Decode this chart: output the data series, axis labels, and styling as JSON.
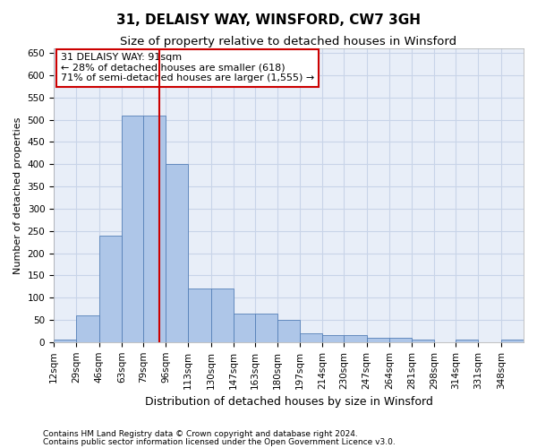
{
  "title1": "31, DELAISY WAY, WINSFORD, CW7 3GH",
  "title2": "Size of property relative to detached houses in Winsford",
  "xlabel": "Distribution of detached houses by size in Winsford",
  "ylabel": "Number of detached properties",
  "footnote1": "Contains HM Land Registry data © Crown copyright and database right 2024.",
  "footnote2": "Contains public sector information licensed under the Open Government Licence v3.0.",
  "annotation_line1": "31 DELAISY WAY: 91sqm",
  "annotation_line2": "← 28% of detached houses are smaller (618)",
  "annotation_line3": "71% of semi-detached houses are larger (1,555) →",
  "bar_edges": [
    12,
    29,
    46,
    63,
    79,
    96,
    113,
    130,
    147,
    163,
    180,
    197,
    214,
    230,
    247,
    264,
    281,
    298,
    314,
    331,
    348
  ],
  "bar_heights": [
    5,
    60,
    240,
    510,
    510,
    400,
    120,
    120,
    65,
    65,
    50,
    20,
    15,
    15,
    10,
    10,
    5,
    0,
    5,
    0,
    5
  ],
  "bar_color": "#aec6e8",
  "bar_edge_color": "#5580b8",
  "vline_color": "#cc0000",
  "vline_x": 91,
  "ylim": [
    0,
    660
  ],
  "yticks": [
    0,
    50,
    100,
    150,
    200,
    250,
    300,
    350,
    400,
    450,
    500,
    550,
    600,
    650
  ],
  "grid_color": "#c8d4e8",
  "bg_color": "#e8eef8",
  "annotation_box_color": "#cc0000",
  "title_fontsize": 11,
  "subtitle_fontsize": 9.5,
  "ylabel_fontsize": 8,
  "xlabel_fontsize": 9,
  "tick_fontsize": 7.5,
  "footnote_fontsize": 6.5,
  "annotation_fontsize": 8
}
